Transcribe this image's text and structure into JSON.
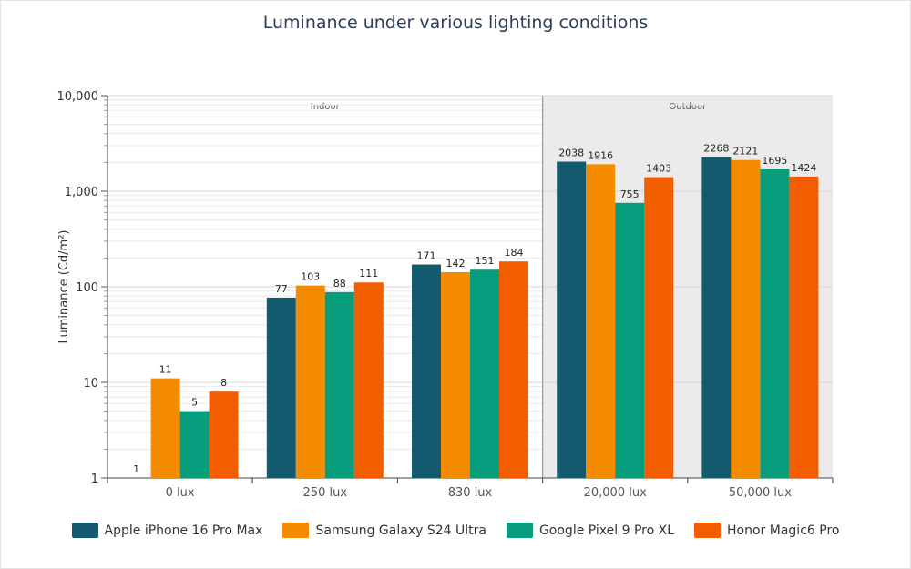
{
  "chart_data": {
    "type": "bar",
    "title": "Luminance under various lighting conditions",
    "ylabel": "Luminance (Cd/m²)",
    "xlabel": "",
    "yscale": "log",
    "ylim": [
      1,
      10000
    ],
    "yticks": [
      1,
      10,
      100,
      1000,
      10000
    ],
    "ytick_labels": [
      "1",
      "10",
      "100",
      "1,000",
      "10,000"
    ],
    "categories": [
      "0 lux",
      "250 lux",
      "830 lux",
      "20,000 lux",
      "50,000 lux"
    ],
    "regions": [
      {
        "label": "Indoor",
        "categories": [
          "0 lux",
          "250 lux",
          "830 lux"
        ],
        "shaded": false
      },
      {
        "label": "Outdoor",
        "categories": [
          "20,000 lux",
          "50,000 lux"
        ],
        "shaded": true
      }
    ],
    "series": [
      {
        "name": "Apple iPhone 16 Pro Max",
        "color": "#135a6e",
        "values": [
          1,
          77,
          171,
          2038,
          2268
        ],
        "labels": [
          "1",
          "77",
          "171",
          "2038",
          "2268"
        ]
      },
      {
        "name": "Samsung Galaxy S24 Ultra",
        "color": "#f58c00",
        "values": [
          11,
          103,
          142,
          1916,
          2121
        ],
        "labels": [
          "11",
          "103",
          "142",
          "1916",
          "2121"
        ]
      },
      {
        "name": "Google Pixel 9 Pro XL",
        "color": "#079c7c",
        "values": [
          5,
          88,
          151,
          755,
          1695
        ],
        "labels": [
          "5",
          "88",
          "151",
          "755",
          "1695"
        ]
      },
      {
        "name": "Honor Magic6 Pro",
        "color": "#f25d00",
        "values": [
          8,
          111,
          184,
          1403,
          1424
        ],
        "labels": [
          "8",
          "111",
          "184",
          "1403",
          "1424"
        ]
      }
    ],
    "grid": true,
    "legend_position": "bottom"
  }
}
